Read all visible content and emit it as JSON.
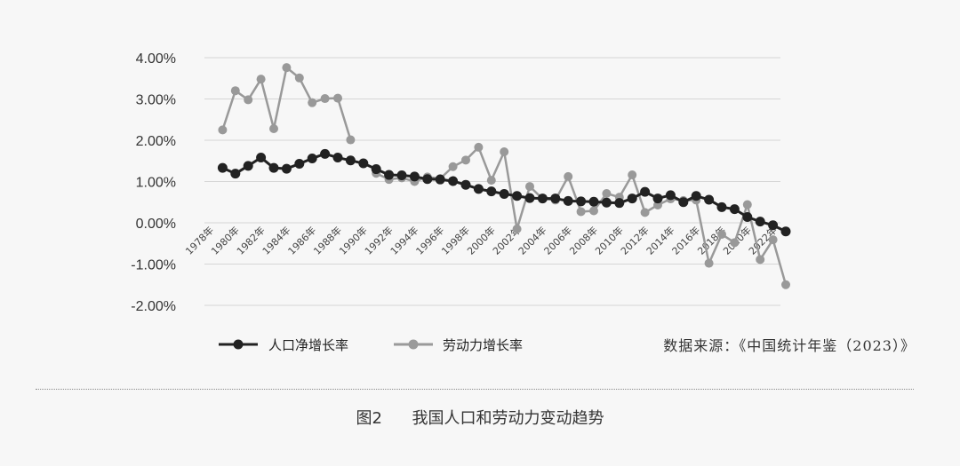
{
  "chart_data": {
    "type": "line",
    "x": [
      "1978年",
      "1979年",
      "1980年",
      "1981年",
      "1982年",
      "1983年",
      "1984年",
      "1985年",
      "1986年",
      "1987年",
      "1988年",
      "1989年",
      "1990年",
      "1991年",
      "1992年",
      "1993年",
      "1994年",
      "1995年",
      "1996年",
      "1997年",
      "1998年",
      "1999年",
      "2000年",
      "2001年",
      "2002年",
      "2003年",
      "2004年",
      "2005年",
      "2006年",
      "2007年",
      "2008年",
      "2009年",
      "2010年",
      "2011年",
      "2012年",
      "2013年",
      "2014年",
      "2015年",
      "2016年",
      "2017年",
      "2018年",
      "2019年",
      "2020年",
      "2021年",
      "2022年",
      "2023年"
    ],
    "x_tick_labels": [
      "1978年",
      "1980年",
      "1982年",
      "1984年",
      "1986年",
      "1988年",
      "1990年",
      "1992年",
      "1994年",
      "1996年",
      "1998年",
      "2000年",
      "2002年",
      "2004年",
      "2006年",
      "2008年",
      "2010年",
      "2012年",
      "2014年",
      "2016年",
      "2018年",
      "2020年",
      "2022年"
    ],
    "y_ticks": [
      "4.00%",
      "3.00%",
      "2.00%",
      "1.00%",
      "0.00%",
      "-1.00%",
      "-2.00%"
    ],
    "ylim": [
      -2.0,
      4.0
    ],
    "grid": true,
    "legend_position": "bottom-left",
    "series": [
      {
        "name": "人口净增长率",
        "color": "#222222",
        "values": [
          null,
          1.33,
          1.19,
          1.38,
          1.58,
          1.33,
          1.31,
          1.43,
          1.56,
          1.67,
          1.58,
          1.51,
          1.44,
          1.3,
          1.16,
          1.15,
          1.12,
          1.06,
          1.05,
          1.01,
          0.92,
          0.82,
          0.76,
          0.7,
          0.65,
          0.6,
          0.59,
          0.59,
          0.53,
          0.52,
          0.51,
          0.49,
          0.48,
          0.59,
          0.75,
          0.59,
          0.67,
          0.5,
          0.65,
          0.56,
          0.38,
          0.33,
          0.14,
          0.03,
          -0.06,
          -0.21
        ]
      },
      {
        "name": "劳动力增长率",
        "color": "#999999",
        "values": [
          null,
          2.25,
          3.2,
          2.98,
          3.48,
          2.28,
          3.76,
          3.51,
          2.91,
          3.01,
          3.02,
          2.01,
          null,
          1.2,
          1.05,
          1.09,
          1.0,
          1.11,
          1.07,
          1.36,
          1.52,
          1.83,
          1.03,
          1.72,
          -0.15,
          0.88,
          0.58,
          0.55,
          1.12,
          0.27,
          0.29,
          0.71,
          0.62,
          1.16,
          0.25,
          0.43,
          0.58,
          0.54,
          0.55,
          -0.98,
          -0.28,
          -0.48,
          0.44,
          -0.89,
          -0.41,
          -1.5
        ]
      }
    ]
  },
  "legend": {
    "item1": "人口净增长率",
    "item2": "劳动力增长率"
  },
  "source": "数据来源：《中国统计年鉴（2023）》",
  "caption": {
    "number": "图2",
    "title": "我国人口和劳动力变动趋势"
  }
}
